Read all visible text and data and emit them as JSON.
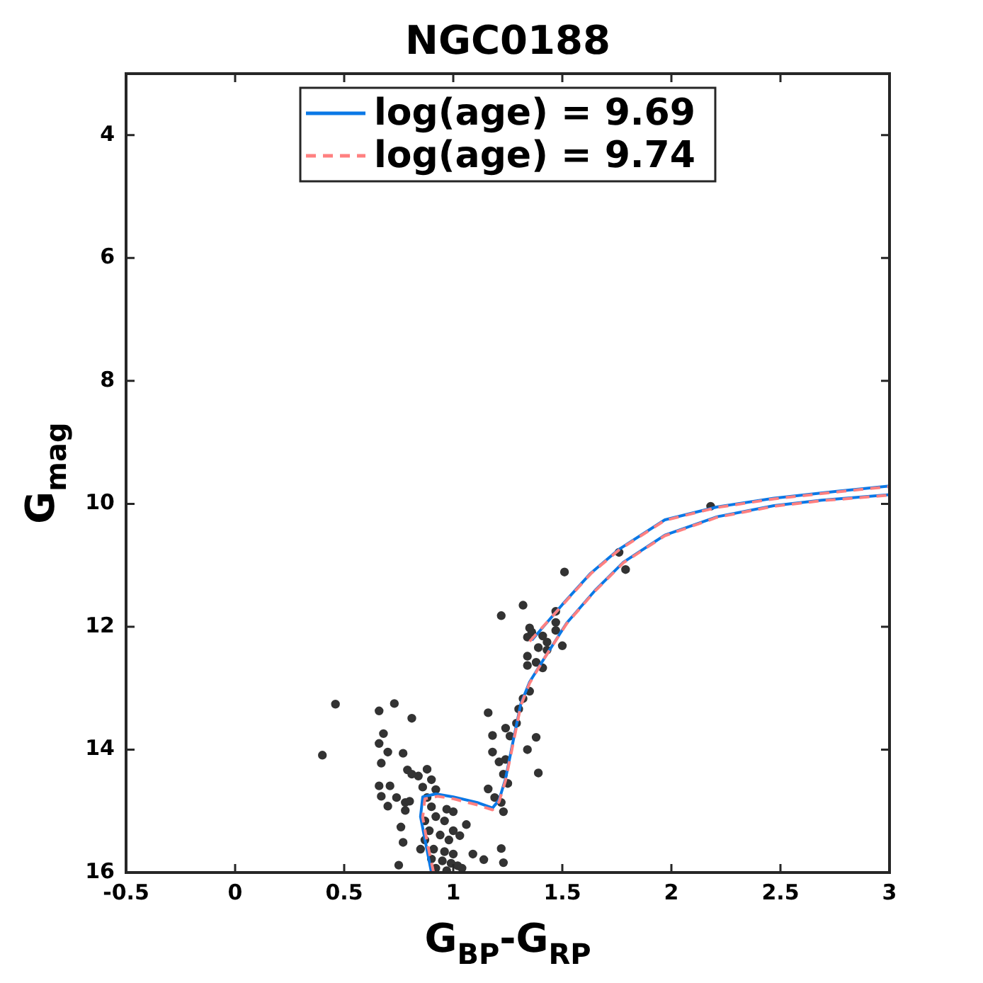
{
  "chart_data": {
    "type": "scatter",
    "title": "NGC0188",
    "xlabel": "G$_{BP}$-G$_{RP}$",
    "ylabel": "G$_{mag}$",
    "xlim": [
      -0.5,
      3
    ],
    "ylim": [
      16,
      3
    ],
    "xticks": [
      -0.5,
      0,
      0.5,
      1,
      1.5,
      2,
      2.5,
      3
    ],
    "yticks": [
      4,
      6,
      8,
      10,
      12,
      14,
      16
    ],
    "grid": false,
    "legend": "top",
    "marker": "circle",
    "series": [
      {
        "color": "#333333",
        "x": [
          1.32,
          1.22,
          1.35,
          1.36,
          1.34,
          1.47,
          1.47,
          1.41,
          1.43,
          1.39,
          1.43,
          1.5,
          1.34,
          1.38,
          1.34,
          1.41,
          1.35,
          1.32,
          1.3,
          1.16,
          1.29,
          1.24,
          1.18,
          1.26,
          1.38,
          1.34,
          1.18,
          1.21,
          1.24,
          1.23,
          1.39,
          1.25,
          1.16,
          1.19,
          1.22,
          1.23,
          0.46,
          0.4,
          0.66,
          0.73,
          0.81,
          0.68,
          0.66,
          0.7,
          0.77,
          0.67,
          0.79,
          0.81,
          0.84,
          0.88,
          0.9,
          0.66,
          0.71,
          0.67,
          0.74,
          0.86,
          0.92,
          0.78,
          0.8,
          0.7,
          0.78,
          0.76,
          0.77,
          0.75,
          1.06,
          1.03,
          1.09,
          1.14,
          1.22,
          1.23,
          0.88,
          0.9,
          0.92,
          0.96,
          0.89,
          0.94,
          0.98,
          0.91,
          0.96,
          1.0,
          0.95,
          0.99,
          1.02,
          1.04,
          0.92,
          0.97,
          0.87,
          0.85,
          0.9,
          1.0,
          0.97,
          1.0,
          0.87,
          1.51,
          1.79,
          1.76,
          2.18,
          1.47
        ],
        "values": [
          11.65,
          11.82,
          12.02,
          12.09,
          12.17,
          11.93,
          12.06,
          12.15,
          12.25,
          12.34,
          12.38,
          12.31,
          12.48,
          12.58,
          12.63,
          12.67,
          13.05,
          13.17,
          13.34,
          13.4,
          13.57,
          13.65,
          13.77,
          13.78,
          13.8,
          14.0,
          14.04,
          14.2,
          14.16,
          14.4,
          14.38,
          14.55,
          14.64,
          14.78,
          14.86,
          15.01,
          13.26,
          14.09,
          13.37,
          13.25,
          13.49,
          13.74,
          13.9,
          14.04,
          14.06,
          14.22,
          14.33,
          14.4,
          14.43,
          14.32,
          14.49,
          14.59,
          14.59,
          14.76,
          14.78,
          14.61,
          14.65,
          14.86,
          14.84,
          14.92,
          14.99,
          15.26,
          15.51,
          15.88,
          15.22,
          15.4,
          15.7,
          15.79,
          15.61,
          15.84,
          14.78,
          14.93,
          15.09,
          15.16,
          15.32,
          15.39,
          15.47,
          15.62,
          15.66,
          15.7,
          15.81,
          15.85,
          15.89,
          15.93,
          15.93,
          15.97,
          15.47,
          15.62,
          15.78,
          15.01,
          14.97,
          15.32,
          15.16,
          11.11,
          11.07,
          10.79,
          10.04,
          11.75
        ]
      },
      {
        "type": "line",
        "name": "log(age) = 9.69",
        "color": "#0a78e6",
        "line_style": "solid",
        "marker": "none",
        "x": [
          0.9,
          0.87,
          0.85,
          0.86,
          0.92,
          1.0,
          1.11,
          1.18,
          1.21,
          1.24,
          1.27,
          1.31,
          1.35,
          1.42,
          1.52,
          1.65,
          1.78,
          1.97,
          2.21,
          2.47,
          2.69,
          3.0
        ],
        "values": [
          16.0,
          15.46,
          15.09,
          14.77,
          14.72,
          14.77,
          14.86,
          14.95,
          14.82,
          14.47,
          13.94,
          13.25,
          12.9,
          12.5,
          11.94,
          11.41,
          10.95,
          10.51,
          10.21,
          10.03,
          9.94,
          9.85
        ]
      },
      {
        "type": "line",
        "color": "#0a78e6",
        "line_style": "solid",
        "marker": "none",
        "x": [
          1.36,
          1.5,
          1.63,
          1.76,
          1.97,
          2.21,
          2.47,
          2.75,
          3.0
        ],
        "values": [
          12.22,
          11.64,
          11.13,
          10.74,
          10.26,
          10.05,
          9.91,
          9.8,
          9.71
        ]
      },
      {
        "type": "line",
        "name": "log(age) = 9.74",
        "color": "#ff8080",
        "line_style": "dashed",
        "marker": "none",
        "x": [
          0.91,
          0.88,
          0.86,
          0.87,
          0.93,
          1.0,
          1.11,
          1.18,
          1.21,
          1.24,
          1.27,
          1.31,
          1.35,
          1.42,
          1.52,
          1.65,
          1.78,
          1.97,
          2.21,
          2.47,
          2.69,
          3.0
        ],
        "values": [
          16.0,
          15.5,
          15.1,
          14.8,
          14.76,
          14.8,
          14.9,
          14.98,
          14.85,
          14.5,
          13.98,
          13.28,
          12.92,
          12.5,
          11.95,
          11.42,
          10.96,
          10.52,
          10.22,
          10.04,
          9.95,
          9.86
        ]
      },
      {
        "type": "line",
        "color": "#ff8080",
        "line_style": "dashed",
        "marker": "none",
        "x": [
          1.35,
          1.5,
          1.63,
          1.76,
          1.97,
          2.21,
          2.47,
          2.75,
          3.0
        ],
        "values": [
          12.24,
          11.65,
          11.14,
          10.75,
          10.27,
          10.06,
          9.92,
          9.81,
          9.72
        ]
      }
    ]
  }
}
